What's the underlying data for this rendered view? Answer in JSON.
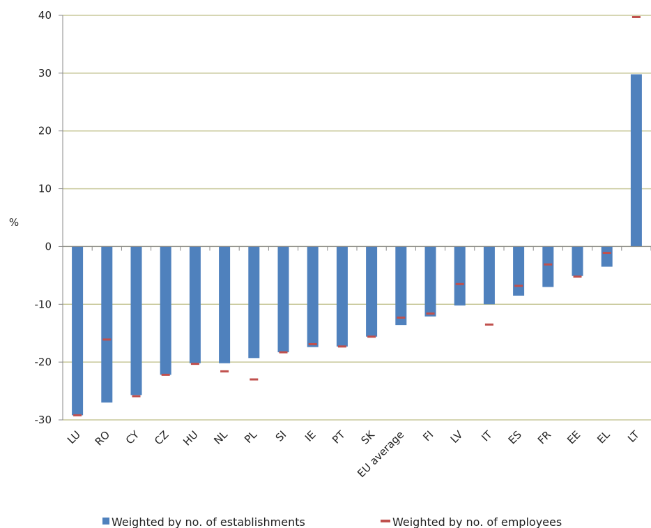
{
  "chart_data": {
    "type": "bar",
    "ylabel": "%",
    "ylim": [
      -30,
      40
    ],
    "yticks": [
      40,
      30,
      20,
      10,
      0,
      -10,
      -20,
      -30
    ],
    "grid": true,
    "categories": [
      "LU",
      "RO",
      "CY",
      "CZ",
      "HU",
      "NL",
      "PL",
      "SI",
      "IE",
      "PT",
      "SK",
      "EU average",
      "FI",
      "LV",
      "IT",
      "ES",
      "FR",
      "EE",
      "EL",
      "LT"
    ],
    "series": [
      {
        "name": "Weighted by no. of establishments",
        "mark": "bar",
        "color": "#4F81BD",
        "values": [
          -29.2,
          -27.0,
          -25.7,
          -22.2,
          -20.2,
          -20.2,
          -19.3,
          -18.3,
          -17.4,
          -17.3,
          -15.6,
          -13.6,
          -12.1,
          -10.2,
          -10.0,
          -8.5,
          -7.0,
          -5.1,
          -3.5,
          29.8
        ]
      },
      {
        "name": "Weighted by no. of employees",
        "mark": "dash",
        "color": "#C0504D",
        "values": [
          -29.2,
          -16.1,
          -25.9,
          -22.2,
          -20.3,
          -21.6,
          -23.0,
          -18.3,
          -16.9,
          -17.3,
          -15.6,
          -12.3,
          -11.6,
          -6.5,
          -13.5,
          -6.8,
          -3.1,
          -5.2,
          -1.1,
          39.7
        ]
      }
    ],
    "legend_position": "bottom"
  }
}
